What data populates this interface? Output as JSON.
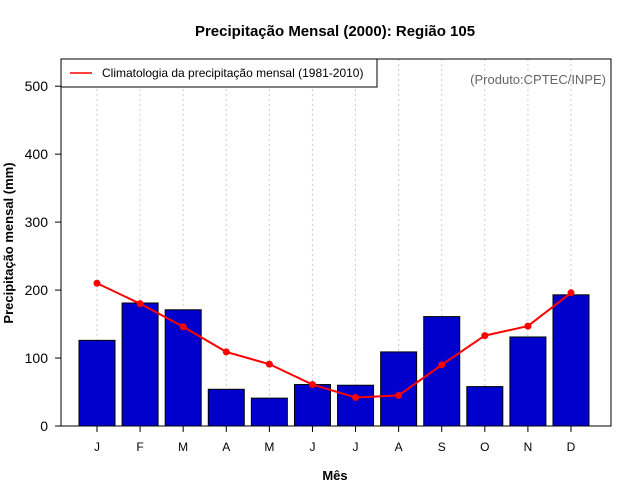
{
  "chart_data": {
    "type": "bar",
    "title": "Precipitação Mensal (2000): Região 105",
    "xlabel": "Mês",
    "ylabel": "Precipitação mensal (mm)",
    "ylim": [
      0,
      540
    ],
    "yticks": [
      "0",
      "100",
      "200",
      "300",
      "400",
      "500"
    ],
    "grid": "vertical dotted",
    "categories": [
      "J",
      "F",
      "M",
      "A",
      "M",
      "J",
      "J",
      "A",
      "S",
      "O",
      "N",
      "D"
    ],
    "series": [
      {
        "name": "Precipitação mensal (2000)",
        "kind": "bar",
        "values": [
          126,
          181,
          171,
          54,
          41,
          61,
          60,
          109,
          161,
          58,
          131,
          193
        ]
      },
      {
        "name": "Climatologia da precipitação mensal (1981-2010)",
        "kind": "line",
        "values": [
          210,
          180,
          146,
          109,
          91,
          61,
          42,
          45,
          90,
          133,
          147,
          196
        ]
      }
    ],
    "legend": {
      "position": "top-left",
      "entries": [
        "Climatologia da precipitação mensal (1981-2010)"
      ]
    },
    "annotation": "(Produto:CPTEC/INPE)",
    "colors": {
      "bar_fill": "#0000cc",
      "bar_stroke": "#000000",
      "line": "#ff0000",
      "grid": "#cccccc"
    }
  }
}
